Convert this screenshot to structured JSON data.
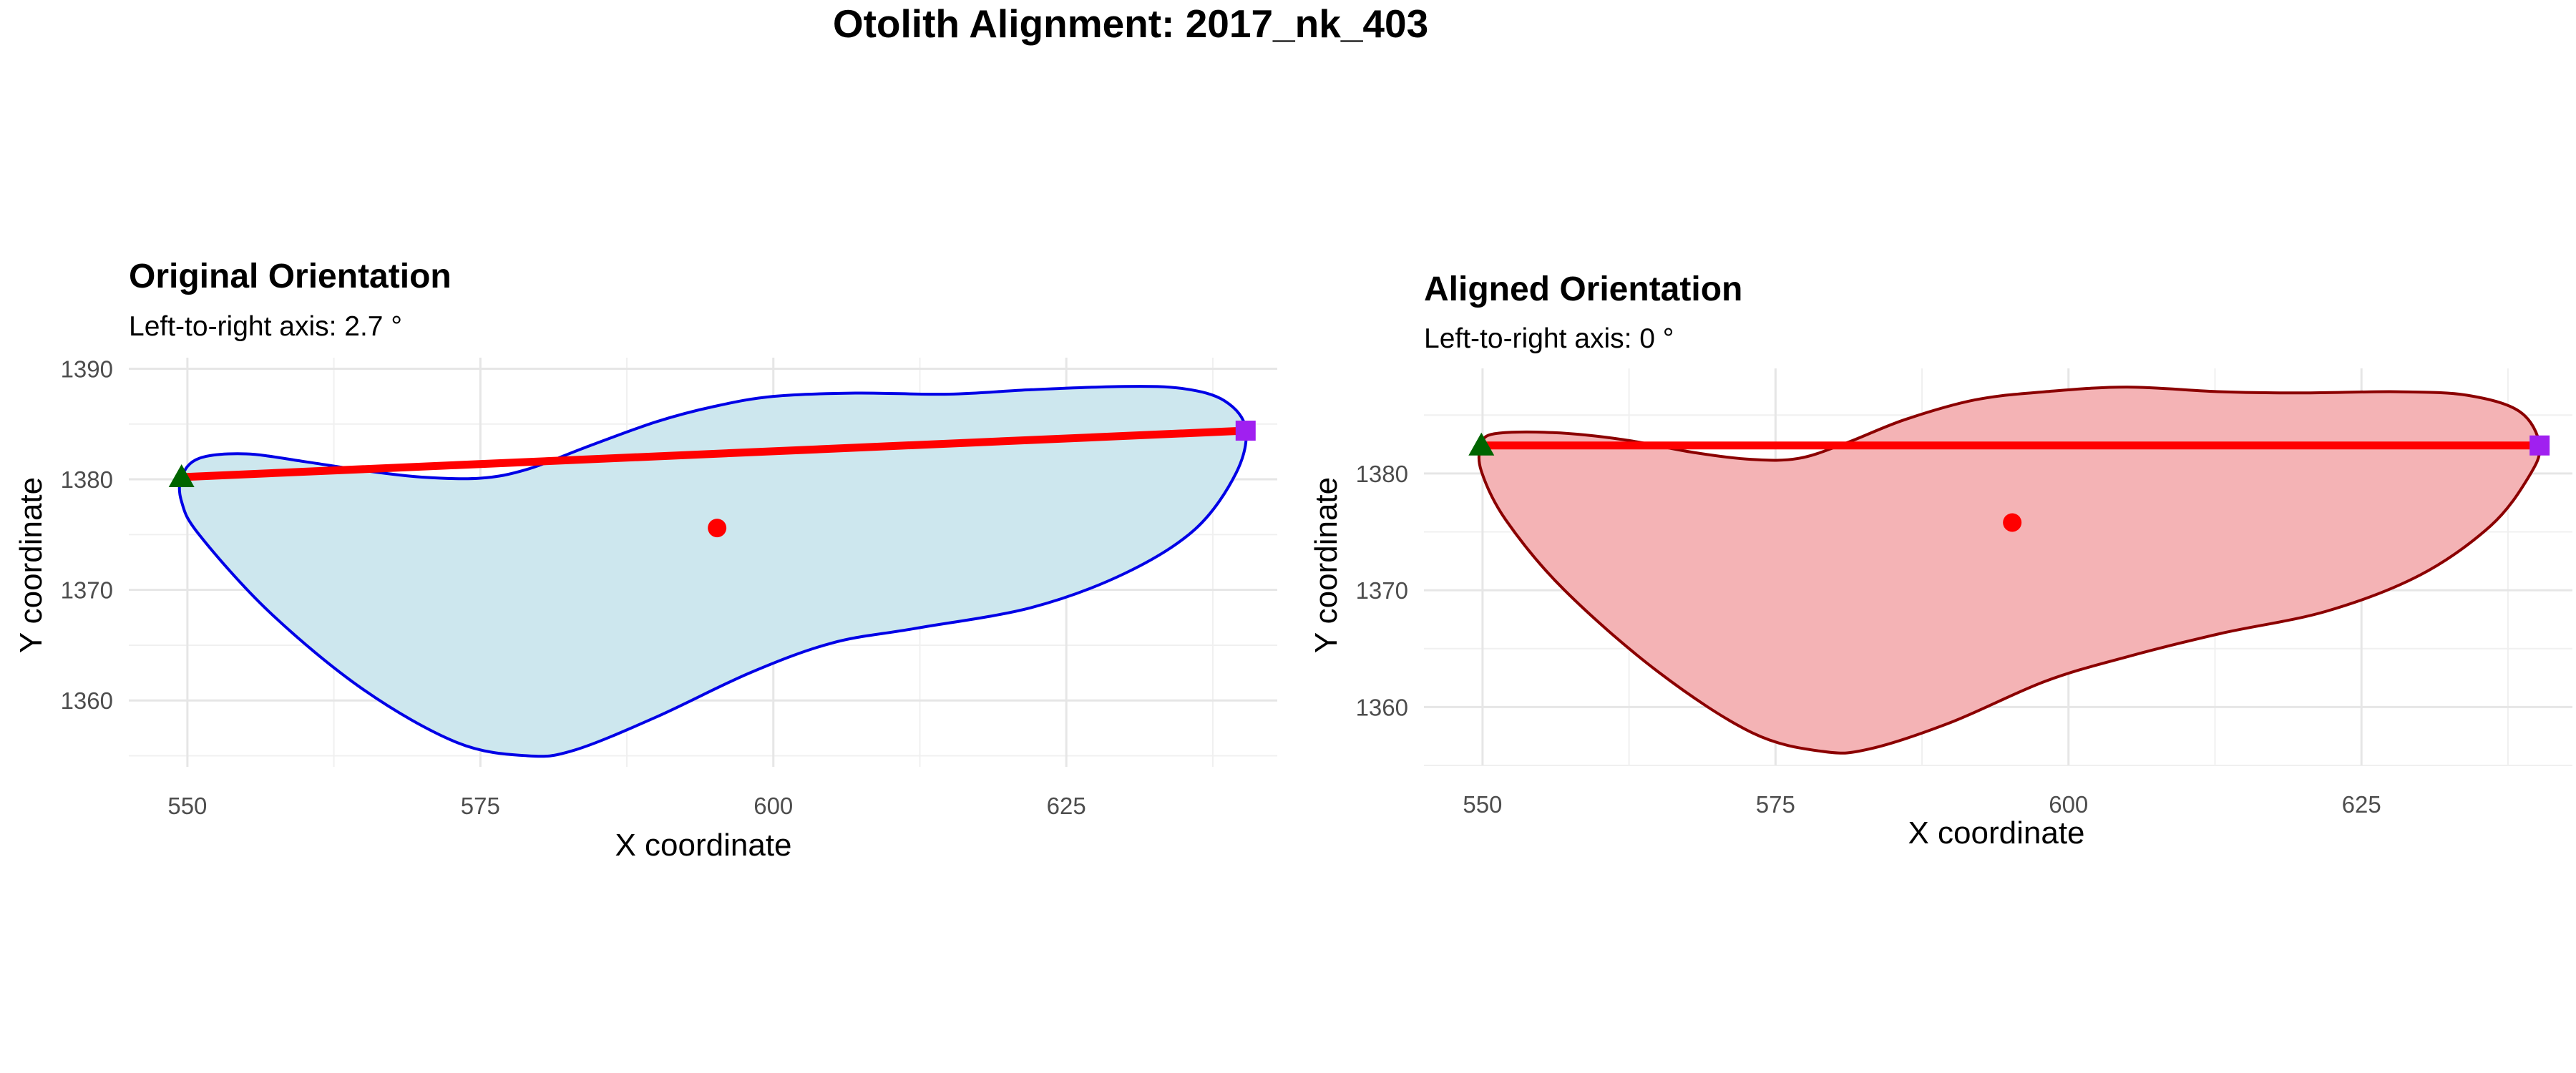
{
  "title": "Otolith Alignment: 2017_nk_403",
  "chart_data": [
    {
      "type": "polygon-shape",
      "title": "Original Orientation",
      "subtitle": "Left-to-right axis: 2.7 °",
      "xlabel": "X coordinate",
      "ylabel": "Y coordinate",
      "xlim": [
        545,
        643
      ],
      "ylim": [
        1354,
        1391
      ],
      "x_ticks": [
        550,
        575,
        600,
        625
      ],
      "y_ticks": [
        1360,
        1370,
        1380,
        1390
      ],
      "grid": true,
      "colors": {
        "fill": "#cde7ee",
        "outline": "#0000e6",
        "axis_line": "#ff0000",
        "centroid": "#ff0000",
        "left_point": "#006400",
        "right_point": "#a020f0"
      },
      "outline": [
        [
          549.5,
          1380.2
        ],
        [
          551,
          1381.9
        ],
        [
          555,
          1382.3
        ],
        [
          560,
          1381.6
        ],
        [
          565,
          1380.8
        ],
        [
          570,
          1380.2
        ],
        [
          575,
          1380.1
        ],
        [
          579,
          1380.9
        ],
        [
          584,
          1382.9
        ],
        [
          590,
          1385.2
        ],
        [
          595,
          1386.6
        ],
        [
          600,
          1387.5
        ],
        [
          607,
          1387.8
        ],
        [
          615,
          1387.7
        ],
        [
          622,
          1388.1
        ],
        [
          630,
          1388.4
        ],
        [
          635,
          1388.2
        ],
        [
          638.5,
          1387.1
        ],
        [
          640.3,
          1384.6
        ],
        [
          639.5,
          1380.6
        ],
        [
          636,
          1375.5
        ],
        [
          630,
          1371.5
        ],
        [
          622,
          1368.4
        ],
        [
          612,
          1366.5
        ],
        [
          605,
          1365.2
        ],
        [
          598,
          1362.5
        ],
        [
          590,
          1358.5
        ],
        [
          583,
          1355.5
        ],
        [
          579,
          1355
        ],
        [
          573,
          1356.2
        ],
        [
          565,
          1361
        ],
        [
          557,
          1368
        ],
        [
          551,
          1375
        ],
        [
          549.5,
          1378
        ]
      ],
      "axis_line": {
        "start": [
          549.5,
          1380.2
        ],
        "end": [
          640.3,
          1384.4
        ]
      },
      "centroid": [
        595.2,
        1375.6
      ],
      "left_point": [
        549.5,
        1380.2
      ],
      "right_point": [
        640.3,
        1384.4
      ]
    },
    {
      "type": "polygon-shape",
      "title": "Aligned Orientation",
      "subtitle": "Left-to-right axis: 0 °",
      "xlabel": "X coordinate",
      "ylabel": "Y coordinate",
      "xlim": [
        545,
        643
      ],
      "ylim": [
        1355,
        1389
      ],
      "x_ticks": [
        550,
        575,
        600,
        625
      ],
      "y_ticks": [
        1360,
        1370,
        1380
      ],
      "grid": true,
      "colors": {
        "fill": "#f4b3b5",
        "outline": "#8b0000",
        "axis_line": "#ff0000",
        "centroid": "#ff0000",
        "left_point": "#006400",
        "right_point": "#a020f0"
      },
      "outline": [
        [
          549.9,
          1382.4
        ],
        [
          551,
          1383.4
        ],
        [
          556,
          1383.5
        ],
        [
          562,
          1382.9
        ],
        [
          568,
          1381.8
        ],
        [
          573,
          1381.2
        ],
        [
          577,
          1381.3
        ],
        [
          581,
          1382.6
        ],
        [
          586,
          1384.6
        ],
        [
          592,
          1386.3
        ],
        [
          598,
          1387
        ],
        [
          605,
          1387.4
        ],
        [
          613,
          1387
        ],
        [
          620,
          1386.9
        ],
        [
          628,
          1387
        ],
        [
          634,
          1386.7
        ],
        [
          638.5,
          1385.3
        ],
        [
          640.2,
          1382.4
        ],
        [
          639.2,
          1379.6
        ],
        [
          636,
          1375.5
        ],
        [
          630,
          1371.3
        ],
        [
          622,
          1368.2
        ],
        [
          613,
          1366.3
        ],
        [
          605,
          1364.3
        ],
        [
          598,
          1362.2
        ],
        [
          590,
          1358.7
        ],
        [
          583,
          1356.4
        ],
        [
          579,
          1356.2
        ],
        [
          573,
          1357.8
        ],
        [
          565,
          1363
        ],
        [
          557,
          1370
        ],
        [
          552,
          1376
        ],
        [
          549.9,
          1380.2
        ]
      ],
      "axis_line": {
        "start": [
          549.9,
          1382.4
        ],
        "end": [
          640.2,
          1382.4
        ]
      },
      "centroid": [
        595.2,
        1375.8
      ],
      "left_point": [
        549.9,
        1382.4
      ],
      "right_point": [
        640.2,
        1382.4
      ]
    }
  ]
}
